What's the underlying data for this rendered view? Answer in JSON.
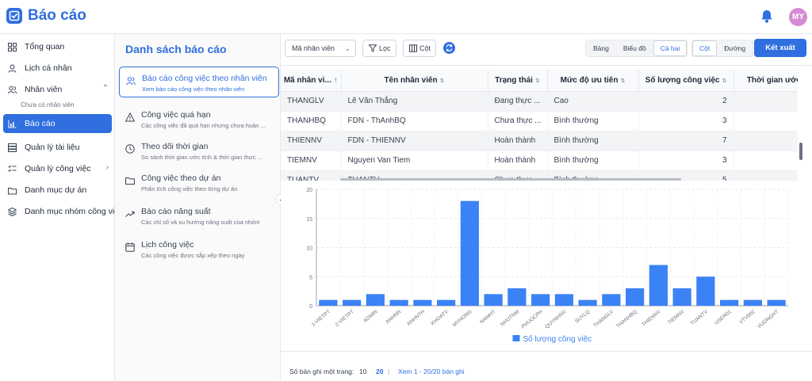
{
  "app": {
    "title": "Báo cáo",
    "avatar_initials": "MY",
    "accent": "#2f6fe0"
  },
  "sidebar": {
    "items": [
      {
        "label": "Tổng quan",
        "icon": "grid-icon"
      },
      {
        "label": "Lịch cá nhân",
        "icon": "user-icon"
      },
      {
        "label": "Nhân viên",
        "icon": "users-icon"
      },
      {
        "label": "Báo cáo",
        "icon": "chart-icon"
      },
      {
        "label": "Quản lý tài liệu",
        "icon": "database-icon"
      },
      {
        "label": "Quản lý công việc",
        "icon": "list-icon"
      },
      {
        "label": "Danh mục dự án",
        "icon": "folder-icon"
      },
      {
        "label": "Danh mục nhóm công việc",
        "icon": "layers-icon"
      }
    ],
    "sub_item": "Chưa có nhân viên"
  },
  "report_panel": {
    "title": "Danh sách báo cáo",
    "items": [
      {
        "title": "Báo cáo công việc theo nhân viên",
        "desc": "Xem báo cáo công việc theo nhân viên",
        "icon": "users-icon"
      },
      {
        "title": "Công việc quá hạn",
        "desc": "Các công việc đã quá hạn nhưng chưa hoàn ...",
        "icon": "warning-icon"
      },
      {
        "title": "Theo dõi thời gian",
        "desc": "So sánh thời gian ước tính & thời gian thực ...",
        "icon": "clock-icon"
      },
      {
        "title": "Công việc theo dự án",
        "desc": "Phân tích công việc theo từng dự án",
        "icon": "folder-icon"
      },
      {
        "title": "Báo cáo năng suất",
        "desc": "Các chỉ số và xu hướng năng suất của nhóm",
        "icon": "trend-icon"
      },
      {
        "title": "Lịch công việc",
        "desc": "Các công việc được sắp xếp theo ngày",
        "icon": "calendar-icon"
      }
    ]
  },
  "toolbar": {
    "group_select": "Mã nhân viên",
    "filter_label": "Lọc",
    "columns_label": "Cột",
    "view_modes": [
      "Bảng",
      "Biểu đồ",
      "Cả hai"
    ],
    "active_view": "Cả hai",
    "chart_types": [
      "Cột",
      "Đường"
    ],
    "active_chart_type": "Cột",
    "export_label": "Kết xuất"
  },
  "table": {
    "columns": [
      "Mã nhân vi...",
      "Tên nhân viên",
      "Trạng thái",
      "Mức độ ưu tiên",
      "Số lượng công việc",
      "Thời gian ước tính ("
    ],
    "rows": [
      [
        "THANGLV",
        "Lê Văn Thắng",
        "Đang thực ...",
        "Cao",
        "2",
        ""
      ],
      [
        "THANHBQ",
        "FDN - ThAnhBQ",
        "Chưa thực ...",
        "Bình thường",
        "3",
        ""
      ],
      [
        "THIENNV",
        "FDN - THIENNV",
        "Hoàn thành",
        "Bình thường",
        "7",
        ""
      ],
      [
        "TIEMNV",
        "Nguyen Van Tiem",
        "Hoàn thành",
        "Bình thường",
        "3",
        ""
      ],
      [
        "TUANTV",
        "TUANTV",
        "Chưa thực ...",
        "Bình thường",
        "5",
        ""
      ]
    ]
  },
  "chart_data": {
    "type": "bar",
    "categories": [
      "1-VIETPT",
      "2-VIETPT",
      "ADMIN",
      "ANHNN",
      "ANHNTH",
      "KHOATV",
      "MYHONG",
      "NAMHT",
      "NHUTNM",
      "PHUOCPH",
      "QUYNHNV",
      "SUYLQ",
      "THANGLV",
      "THANHBQ",
      "THIENNV",
      "TIEMNV",
      "TUANTV",
      "USER01",
      "VTV002",
      "VUONGHT"
    ],
    "series": [
      {
        "name": "Số lượng công việc",
        "values": [
          1,
          1,
          2,
          1,
          1,
          1,
          18,
          2,
          3,
          2,
          2,
          1,
          2,
          3,
          7,
          3,
          5,
          1,
          1,
          1
        ],
        "color": "#3b82f6"
      }
    ],
    "yticks": [
      "0",
      "5",
      "10",
      "15",
      "20"
    ],
    "ylim": [
      0,
      20
    ],
    "grid": true,
    "legend_position": "bottom"
  },
  "footer": {
    "page_size_label": "Số bản ghi một trang:",
    "size_a": "10",
    "size_b": "20",
    "sep": "|",
    "range_text": "Xem 1 - 20/20 bản ghi"
  }
}
